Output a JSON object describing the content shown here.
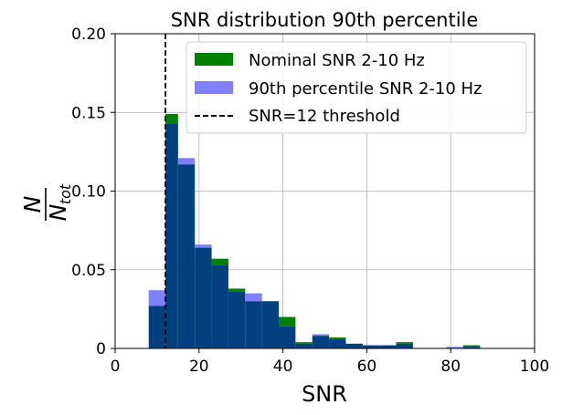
{
  "chart_data": {
    "type": "bar",
    "title": "SNR distribution 90th percentile",
    "xlabel": "SNR",
    "ylabel": {
      "numerator": "N",
      "denominator_main": "N",
      "denominator_sub": "tot"
    },
    "xlim": [
      0,
      100
    ],
    "ylim": [
      0,
      0.2
    ],
    "xticks": [
      0,
      20,
      40,
      60,
      80,
      100
    ],
    "xtick_labels": [
      "0",
      "20",
      "40",
      "60",
      "80",
      "100"
    ],
    "yticks": [
      0,
      0.05,
      0.1,
      0.15,
      0.2
    ],
    "ytick_labels": [
      "0",
      "0.05",
      "0.10",
      "0.15",
      "0.20"
    ],
    "grid": true,
    "legend_position": "top-right",
    "bin_edges": [
      8,
      12,
      15,
      19,
      23,
      27,
      31,
      35,
      39,
      43,
      47,
      51,
      55,
      59,
      63,
      67,
      71,
      75,
      79,
      83,
      87
    ],
    "series": [
      {
        "name": "Nominal SNR 2-10 Hz",
        "color": "#008000",
        "values": [
          0.027,
          0.149,
          0.117,
          0.064,
          0.057,
          0.038,
          0.03,
          0.03,
          0.02,
          0.004,
          0.008,
          0.007,
          0.003,
          0.002,
          0.002,
          0.004,
          0.0,
          0.0,
          0.0,
          0.002
        ]
      },
      {
        "name": "90th percentile SNR 2-10 Hz",
        "color": "#8080ff",
        "values": [
          0.037,
          0.143,
          0.121,
          0.066,
          0.053,
          0.036,
          0.035,
          0.03,
          0.014,
          0.003,
          0.009,
          0.006,
          0.003,
          0.002,
          0.002,
          0.003,
          0.0,
          0.0,
          0.001,
          0.001
        ]
      }
    ],
    "overlap_color": "#00407f",
    "threshold": {
      "name": "SNR=12 threshold",
      "x": 12,
      "color": "#000000"
    }
  }
}
